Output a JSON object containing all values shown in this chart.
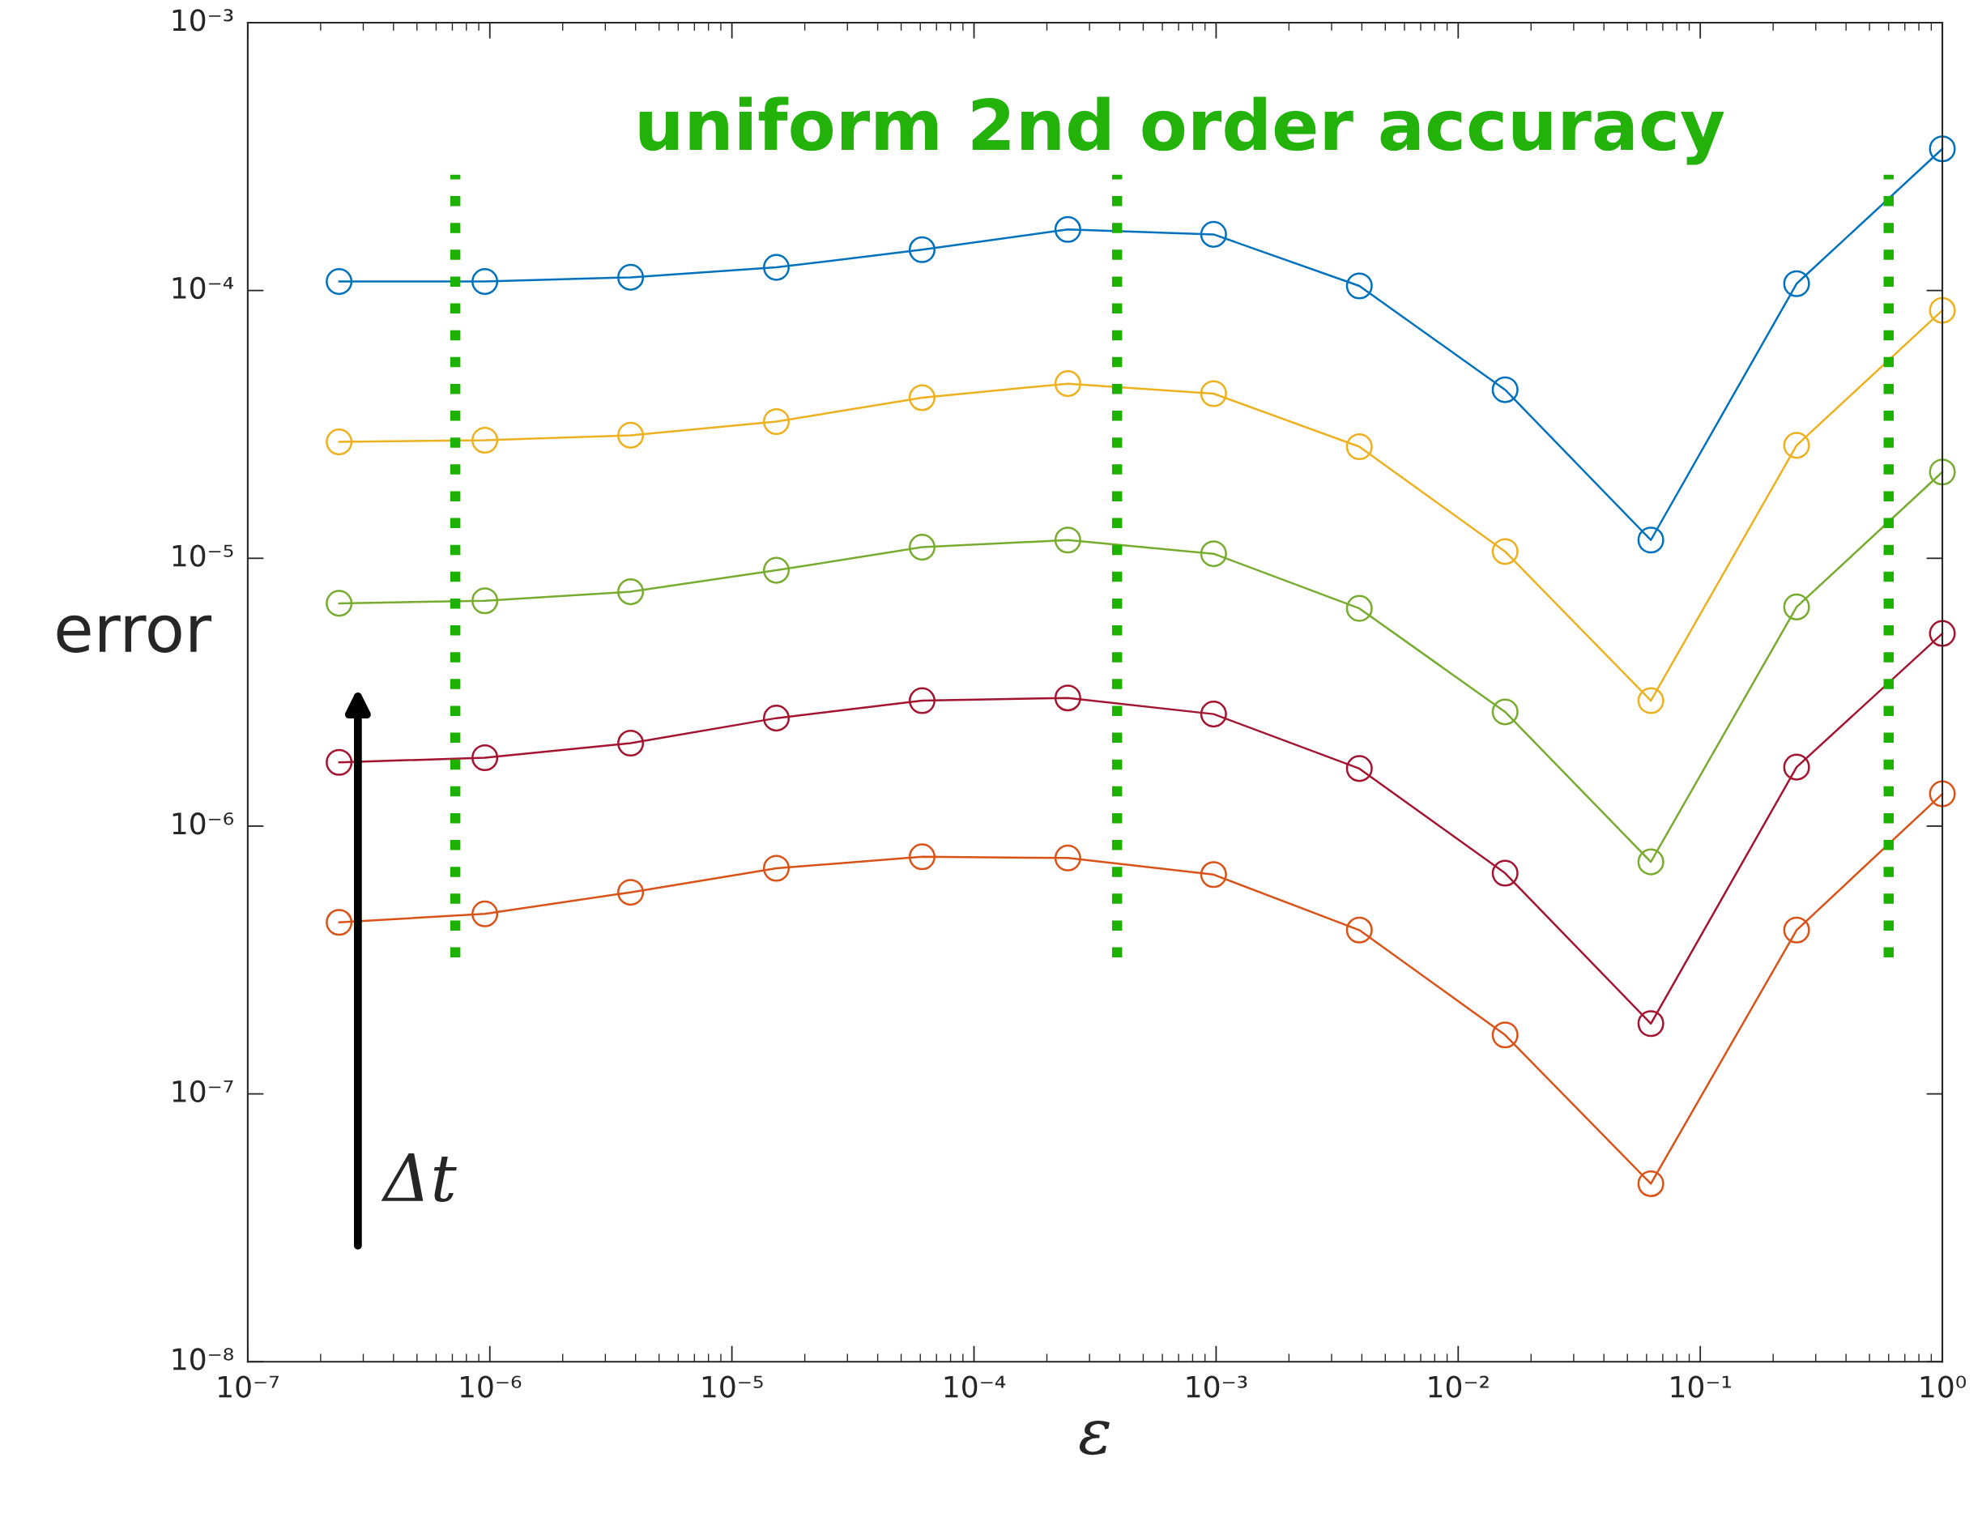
{
  "chart_data": {
    "type": "line",
    "title": "uniform 2nd order accuracy",
    "xlabel": "ε",
    "ylabel": "error",
    "annotations": [
      "Δt"
    ],
    "x": [
      2.384e-07,
      9.537e-07,
      3.815e-06,
      1.526e-05,
      6.104e-05,
      0.0002441,
      0.0009766,
      0.003906,
      0.015625,
      0.0625,
      0.25,
      1
    ],
    "series": [
      {
        "color": "#0072bd",
        "values": [
          0.000108,
          0.000108,
          0.000112,
          0.000122,
          0.000142,
          0.000169,
          0.000162,
          0.000104,
          4.26e-05,
          1.17e-05,
          0.000106,
          0.000338
        ]
      },
      {
        "color": "#edb120",
        "values": [
          2.72e-05,
          2.76e-05,
          2.88e-05,
          3.24e-05,
          3.98e-05,
          4.49e-05,
          4.12e-05,
          2.61e-05,
          1.06e-05,
          2.94e-06,
          2.64e-05,
          8.43e-05
        ]
      },
      {
        "color": "#77ac30",
        "values": [
          6.79e-06,
          6.94e-06,
          7.5e-06,
          9.02e-06,
          1.1e-05,
          1.17e-05,
          1.04e-05,
          6.5e-06,
          2.67e-06,
          7.35e-07,
          6.58e-06,
          2.1e-05
        ]
      },
      {
        "color": "#a2142f",
        "values": [
          1.73e-06,
          1.8e-06,
          2.04e-06,
          2.53e-06,
          2.94e-06,
          3.01e-06,
          2.62e-06,
          1.64e-06,
          6.67e-07,
          1.83e-07,
          1.66e-06,
          5.24e-06
        ]
      },
      {
        "color": "#d95319",
        "values": [
          4.37e-07,
          4.7e-07,
          5.66e-07,
          6.96e-07,
          7.68e-07,
          7.6e-07,
          6.59e-07,
          4.09e-07,
          1.66e-07,
          4.62e-08,
          4.09e-07,
          1.32e-06
        ]
      }
    ],
    "log": "xy",
    "marker": "circle",
    "line_style": "solid",
    "grid": false,
    "legend": false,
    "xlim": [
      1e-07,
      1
    ],
    "xticks": [
      {
        "value": 1e-07,
        "label": "10⁻⁷"
      },
      {
        "value": 1e-06,
        "label": "10⁻⁶"
      },
      {
        "value": 1e-05,
        "label": "10⁻⁵"
      },
      {
        "value": 0.0001,
        "label": "10⁻⁴"
      },
      {
        "value": 0.001,
        "label": "10⁻³"
      },
      {
        "value": 0.01,
        "label": "10⁻²"
      },
      {
        "value": 0.1,
        "label": "10⁻¹"
      },
      {
        "value": 1,
        "label": "10⁰"
      }
    ],
    "ylim": [
      1e-08,
      0.001
    ],
    "yticks": [
      {
        "value": 1e-08,
        "label": "10⁻⁸"
      },
      {
        "value": 1e-07,
        "label": "10⁻⁷"
      },
      {
        "value": 1e-06,
        "label": "10⁻⁶"
      },
      {
        "value": 1e-05,
        "label": "10⁻⁵"
      },
      {
        "value": 0.0001,
        "label": "10⁻⁴"
      },
      {
        "value": 0.001,
        "label": "10⁻³"
      }
    ],
    "ref_lines": [
      {
        "axis": "x",
        "value": 7.2e-07,
        "color": "#1db100",
        "line_style": "dotted"
      },
      {
        "axis": "x",
        "value": 0.00039,
        "color": "#1db100",
        "line_style": "dotted"
      },
      {
        "axis": "x",
        "value": 0.6,
        "color": "#1db100",
        "line_style": "dotted"
      }
    ]
  }
}
